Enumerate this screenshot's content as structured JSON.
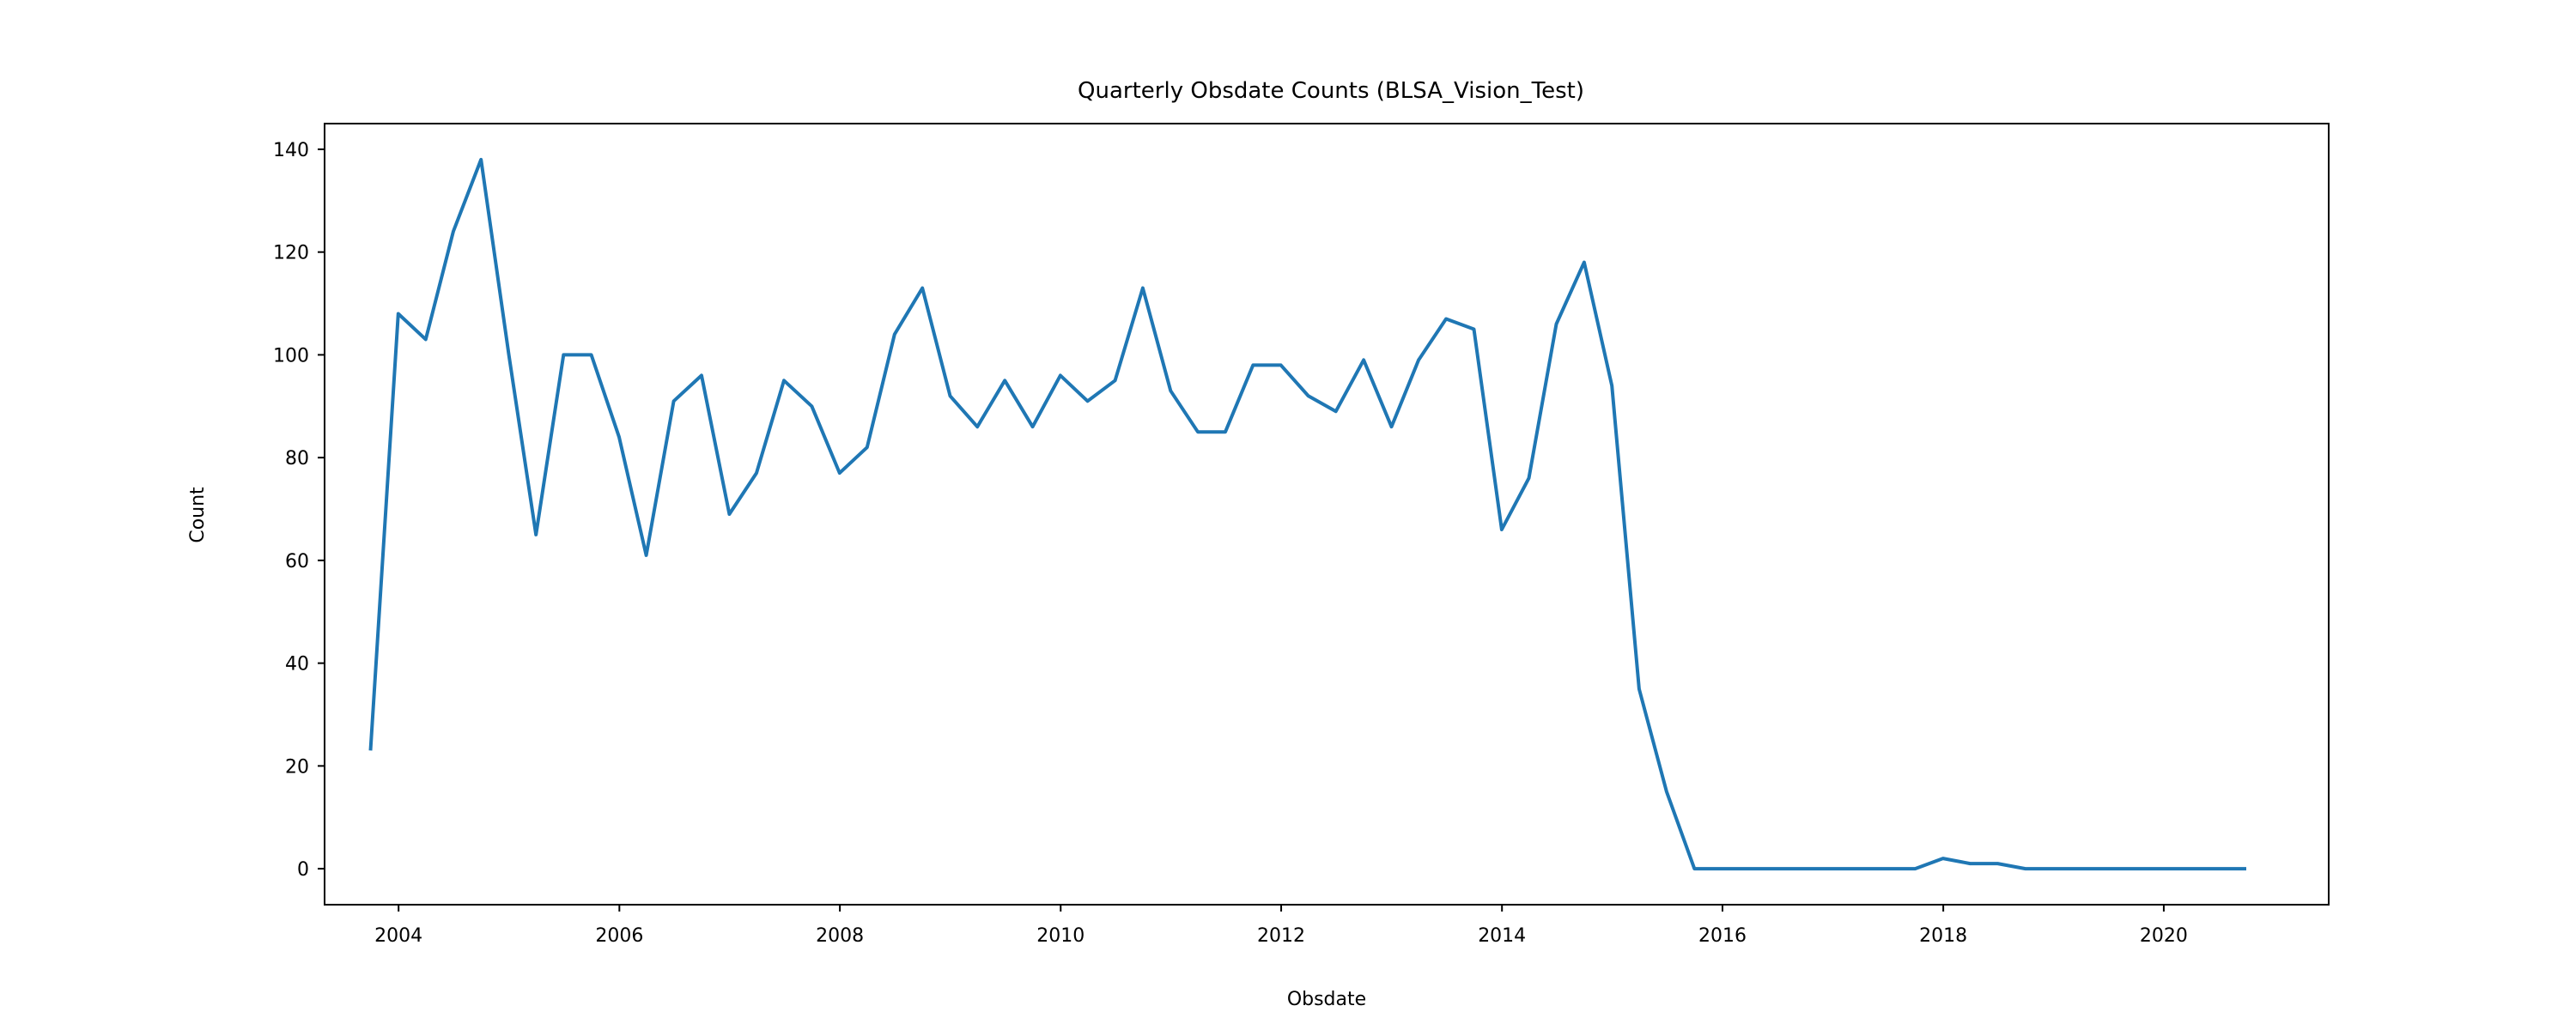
{
  "chart_data": {
    "type": "line",
    "title": "Quarterly Obsdate Counts (BLSA_Vision_Test)",
    "xlabel": "Obsdate",
    "ylabel": "Count",
    "x_ticks": [
      "2004",
      "2006",
      "2008",
      "2010",
      "2012",
      "2014",
      "2016",
      "2018",
      "2020"
    ],
    "y_ticks": [
      "0",
      "20",
      "40",
      "60",
      "80",
      "100",
      "120",
      "140"
    ],
    "xlim": [
      "2003-05-01",
      "2021-06-30"
    ],
    "ylim": [
      -7,
      145
    ],
    "grid": false,
    "color": "#1f77b4",
    "series": [
      {
        "x": [
          "2003-09-30",
          "2003-12-31",
          "2004-03-31",
          "2004-06-30",
          "2004-09-30",
          "2004-12-31",
          "2005-03-31",
          "2005-06-30",
          "2005-09-30",
          "2005-12-31",
          "2006-03-31",
          "2006-06-30",
          "2006-09-30",
          "2006-12-31",
          "2007-03-31",
          "2007-06-30",
          "2007-09-30",
          "2007-12-31",
          "2008-03-31",
          "2008-06-30",
          "2008-09-30",
          "2008-12-31",
          "2009-03-31",
          "2009-06-30",
          "2009-09-30",
          "2009-12-31",
          "2010-03-31",
          "2010-06-30",
          "2010-09-30",
          "2010-12-31",
          "2011-03-31",
          "2011-06-30",
          "2011-09-30",
          "2011-12-31",
          "2012-03-31",
          "2012-06-30",
          "2012-09-30",
          "2012-12-31",
          "2013-03-31",
          "2013-06-30",
          "2013-09-30",
          "2013-12-31",
          "2014-03-31",
          "2014-06-30",
          "2014-09-30",
          "2014-12-31",
          "2015-03-31",
          "2015-06-30",
          "2015-09-30",
          "2015-12-31",
          "2016-03-31",
          "2016-06-30",
          "2016-09-30",
          "2016-12-31",
          "2017-03-31",
          "2017-06-30",
          "2017-09-30",
          "2017-12-31",
          "2018-03-31",
          "2018-06-30",
          "2018-09-30",
          "2018-12-31",
          "2019-03-31",
          "2019-06-30",
          "2019-09-30",
          "2019-12-31",
          "2020-03-31",
          "2020-06-30",
          "2020-09-30"
        ],
        "values": [
          23,
          108,
          103,
          124,
          138,
          100,
          65,
          100,
          100,
          84,
          61,
          91,
          96,
          69,
          77,
          95,
          90,
          77,
          82,
          104,
          113,
          92,
          86,
          95,
          86,
          96,
          91,
          95,
          113,
          93,
          85,
          85,
          98,
          98,
          92,
          89,
          99,
          86,
          99,
          107,
          105,
          66,
          76,
          106,
          118,
          94,
          35,
          15,
          0,
          0,
          0,
          0,
          0,
          0,
          0,
          0,
          0,
          2,
          1,
          1,
          0,
          0,
          0,
          0,
          0,
          0,
          0,
          0,
          0
        ]
      }
    ]
  }
}
